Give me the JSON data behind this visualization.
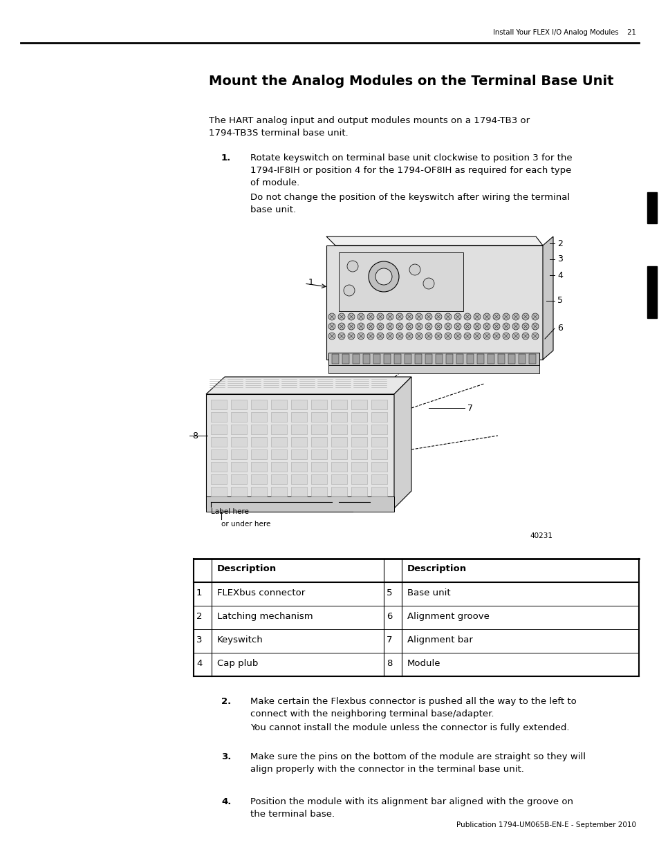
{
  "page_title": "Mount the Analog Modules on the Terminal Base Unit",
  "header_right": "Install Your FLEX I/O Analog Modules",
  "header_page": "21",
  "footer": "Publication 1794-UM065B-EN-E - September 2010",
  "figure_number": "40231",
  "intro_text_1": "The HART analog input and output modules mounts on a 1794-TB3 or",
  "intro_text_2": "1794-TB3S terminal base unit.",
  "step1_num": "1.",
  "step1_line1": "Rotate keyswitch on terminal base unit clockwise to position 3 for the",
  "step1_line2": "1794-IF8IH or position 4 for the 1794-OF8IH as required for each type",
  "step1_line3": "of module.",
  "step1_line4": "Do not change the position of the keyswitch after wiring the terminal",
  "step1_line5": "base unit.",
  "step2_num": "2.",
  "step2_line1": "Make certain the Flexbus connector is pushed all the way to the left to",
  "step2_line2": "connect with the neighboring terminal base/adapter.",
  "step2_line3": "You cannot install the module unless the connector is fully extended.",
  "step3_num": "3.",
  "step3_line1": "Make sure the pins on the bottom of the module are straight so they will",
  "step3_line2": "align properly with the connector in the terminal base unit.",
  "step4_num": "4.",
  "step4_line1": "Position the module with its alignment bar aligned with the groove on",
  "step4_line2": "the terminal base.",
  "label_here": "Label here",
  "or_under_here": "or under here",
  "bg_color": "#ffffff",
  "text_color": "#000000",
  "table_header_col1": "Description",
  "table_header_col2": "Description",
  "table_rows": [
    [
      "1",
      "FLEXbus connector",
      "5",
      "Base unit"
    ],
    [
      "2",
      "Latching mechanism",
      "6",
      "Alignment groove"
    ],
    [
      "3",
      "Keyswitch",
      "7",
      "Alignment bar"
    ],
    [
      "4",
      "Cap plub",
      "8",
      "Module"
    ]
  ]
}
